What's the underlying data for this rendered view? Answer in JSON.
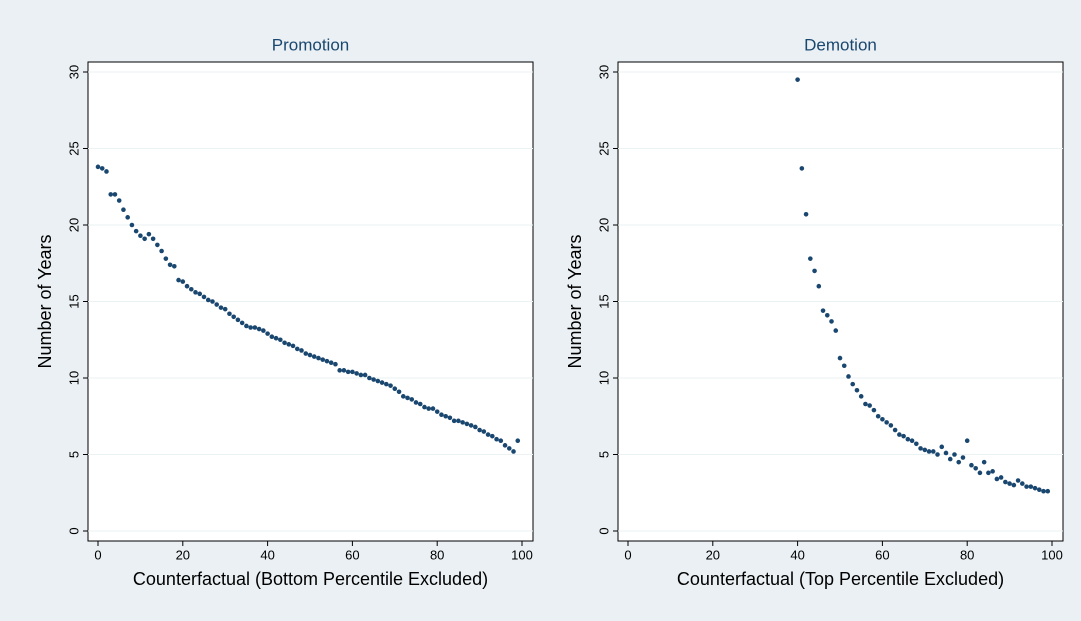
{
  "chart_data": [
    {
      "type": "scatter",
      "title": "Promotion",
      "x_label": "Counterfactual (Bottom Percentile Excluded)",
      "y_label": "Number of Years",
      "color": "#1a476f",
      "grid": true,
      "xlim": [
        0,
        100
      ],
      "ylim": [
        0,
        30
      ],
      "xticks": [
        0,
        20,
        40,
        60,
        80,
        100
      ],
      "yticks": [
        0,
        5,
        10,
        15,
        20,
        25,
        30
      ],
      "x": [
        0,
        1,
        2,
        3,
        4,
        5,
        6,
        7,
        8,
        9,
        10,
        11,
        12,
        13,
        14,
        15,
        16,
        17,
        18,
        19,
        20,
        21,
        22,
        23,
        24,
        25,
        26,
        27,
        28,
        29,
        30,
        31,
        32,
        33,
        34,
        35,
        36,
        37,
        38,
        39,
        40,
        41,
        42,
        43,
        44,
        45,
        46,
        47,
        48,
        49,
        50,
        51,
        52,
        53,
        54,
        55,
        56,
        57,
        58,
        59,
        60,
        61,
        62,
        63,
        64,
        65,
        66,
        67,
        68,
        69,
        70,
        71,
        72,
        73,
        74,
        75,
        76,
        77,
        78,
        79,
        80,
        81,
        82,
        83,
        84,
        85,
        86,
        87,
        88,
        89,
        90,
        91,
        92,
        93,
        94,
        95,
        96,
        97,
        98,
        99
      ],
      "values": [
        23.8,
        23.7,
        23.5,
        22.0,
        22.0,
        21.6,
        21.0,
        20.5,
        20.0,
        19.6,
        19.3,
        19.1,
        19.4,
        19.1,
        18.7,
        18.3,
        17.8,
        17.4,
        17.3,
        16.4,
        16.3,
        16.0,
        15.8,
        15.6,
        15.5,
        15.3,
        15.1,
        15.0,
        14.8,
        14.6,
        14.5,
        14.2,
        14.0,
        13.8,
        13.6,
        13.4,
        13.3,
        13.3,
        13.2,
        13.1,
        12.9,
        12.7,
        12.6,
        12.5,
        12.3,
        12.2,
        12.1,
        11.9,
        11.8,
        11.6,
        11.5,
        11.4,
        11.3,
        11.2,
        11.1,
        11.0,
        10.9,
        10.5,
        10.5,
        10.4,
        10.4,
        10.3,
        10.2,
        10.2,
        10.0,
        9.9,
        9.8,
        9.7,
        9.6,
        9.5,
        9.3,
        9.1,
        8.8,
        8.7,
        8.6,
        8.4,
        8.3,
        8.1,
        8.0,
        8.0,
        7.8,
        7.6,
        7.5,
        7.4,
        7.2,
        7.2,
        7.1,
        7.0,
        6.9,
        6.8,
        6.6,
        6.5,
        6.3,
        6.2,
        6.0,
        5.9,
        5.6,
        5.4,
        5.2,
        5.9
      ]
    },
    {
      "type": "scatter",
      "title": "Demotion",
      "x_label": "Counterfactual (Top Percentile Excluded)",
      "y_label": "Number of Years",
      "color": "#1a476f",
      "grid": true,
      "xlim": [
        0,
        100
      ],
      "ylim": [
        0,
        30
      ],
      "xticks": [
        0,
        20,
        40,
        60,
        80,
        100
      ],
      "yticks": [
        0,
        5,
        10,
        15,
        20,
        25,
        30
      ],
      "x": [
        40,
        41,
        42,
        43,
        44,
        45,
        46,
        47,
        48,
        49,
        50,
        51,
        52,
        53,
        54,
        55,
        56,
        57,
        58,
        59,
        60,
        61,
        62,
        63,
        64,
        65,
        66,
        67,
        68,
        69,
        70,
        71,
        72,
        73,
        74,
        75,
        76,
        77,
        78,
        79,
        80,
        81,
        82,
        83,
        84,
        85,
        86,
        87,
        88,
        89,
        90,
        91,
        92,
        93,
        94,
        95,
        96,
        97,
        98,
        99
      ],
      "values": [
        29.5,
        23.7,
        20.7,
        17.8,
        17.0,
        16.0,
        14.4,
        14.1,
        13.7,
        13.1,
        11.3,
        10.8,
        10.1,
        9.6,
        9.2,
        8.8,
        8.3,
        8.2,
        7.9,
        7.5,
        7.3,
        7.1,
        6.9,
        6.6,
        6.3,
        6.2,
        6.0,
        5.9,
        5.7,
        5.4,
        5.3,
        5.2,
        5.2,
        5.0,
        5.5,
        5.1,
        4.7,
        5.0,
        4.5,
        4.8,
        5.9,
        4.3,
        4.1,
        3.8,
        4.5,
        3.8,
        3.9,
        3.4,
        3.5,
        3.2,
        3.1,
        3.0,
        3.3,
        3.1,
        2.9,
        2.9,
        2.8,
        2.7,
        2.6,
        2.6
      ]
    }
  ]
}
